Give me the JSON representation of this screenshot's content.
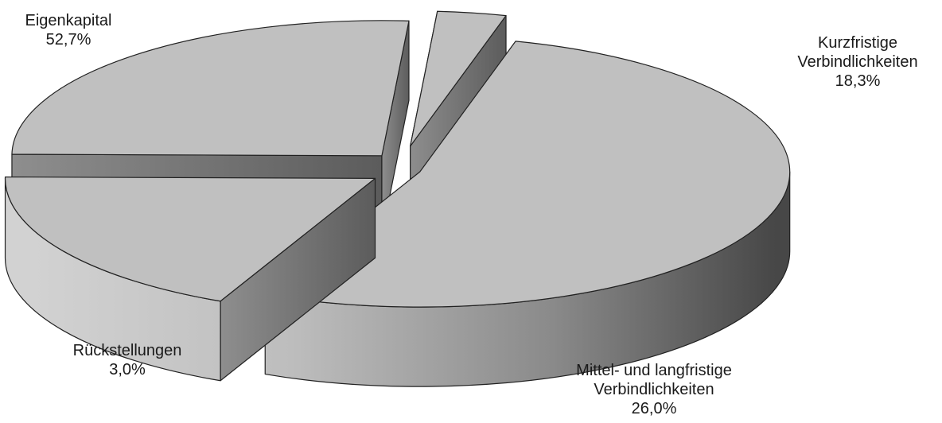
{
  "chart_data": {
    "type": "pie",
    "variant": "3d-exploded",
    "title": "",
    "slices": [
      {
        "label_lines": [
          "Eigenkapital"
        ],
        "value_label": "52,7%",
        "value": 52.7
      },
      {
        "label_lines": [
          "Kurzfristige",
          "Verbindlichkeiten"
        ],
        "value_label": "18,3%",
        "value": 18.3
      },
      {
        "label_lines": [
          "Mittel- und langfristige",
          "Verbindlichkeiten"
        ],
        "value_label": "26,0%",
        "value": 26.0
      },
      {
        "label_lines": [
          "Rückstellungen"
        ],
        "value_label": "3,0%",
        "value": 3.0
      }
    ],
    "colors": {
      "top": "#c0c0c0",
      "side_light": "#d4d4d4",
      "side_dark": "#4a4a4a",
      "edge": "#222222"
    },
    "legend": "none"
  }
}
